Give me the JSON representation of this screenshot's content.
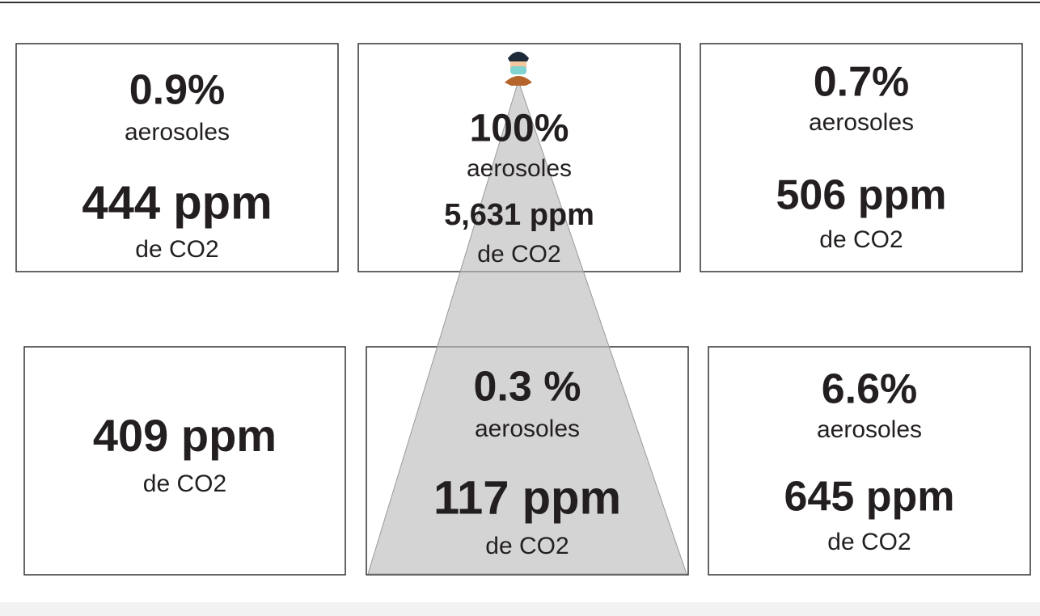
{
  "boxes": [
    {
      "aerosol_value": "0.9%",
      "aerosol_label": "aerosoles",
      "co2_value": "444 ppm",
      "co2_label": "de CO2"
    },
    {
      "aerosol_value": "100%",
      "aerosol_label": "aerosoles",
      "co2_value": "5,631 ppm",
      "co2_label": "de CO2"
    },
    {
      "aerosol_value": "0.7%",
      "aerosol_label": "aerosoles",
      "co2_value": "506 ppm",
      "co2_label": "de CO2"
    },
    {
      "co2_value": "409 ppm",
      "co2_label": "de CO2"
    },
    {
      "aerosol_value": "0.3 %",
      "aerosol_label": "aerosoles",
      "co2_value": "117 ppm",
      "co2_label": "de CO2"
    },
    {
      "aerosol_value": "6.6%",
      "aerosol_label": "aerosoles",
      "co2_value": "645 ppm",
      "co2_label": "de CO2"
    }
  ]
}
